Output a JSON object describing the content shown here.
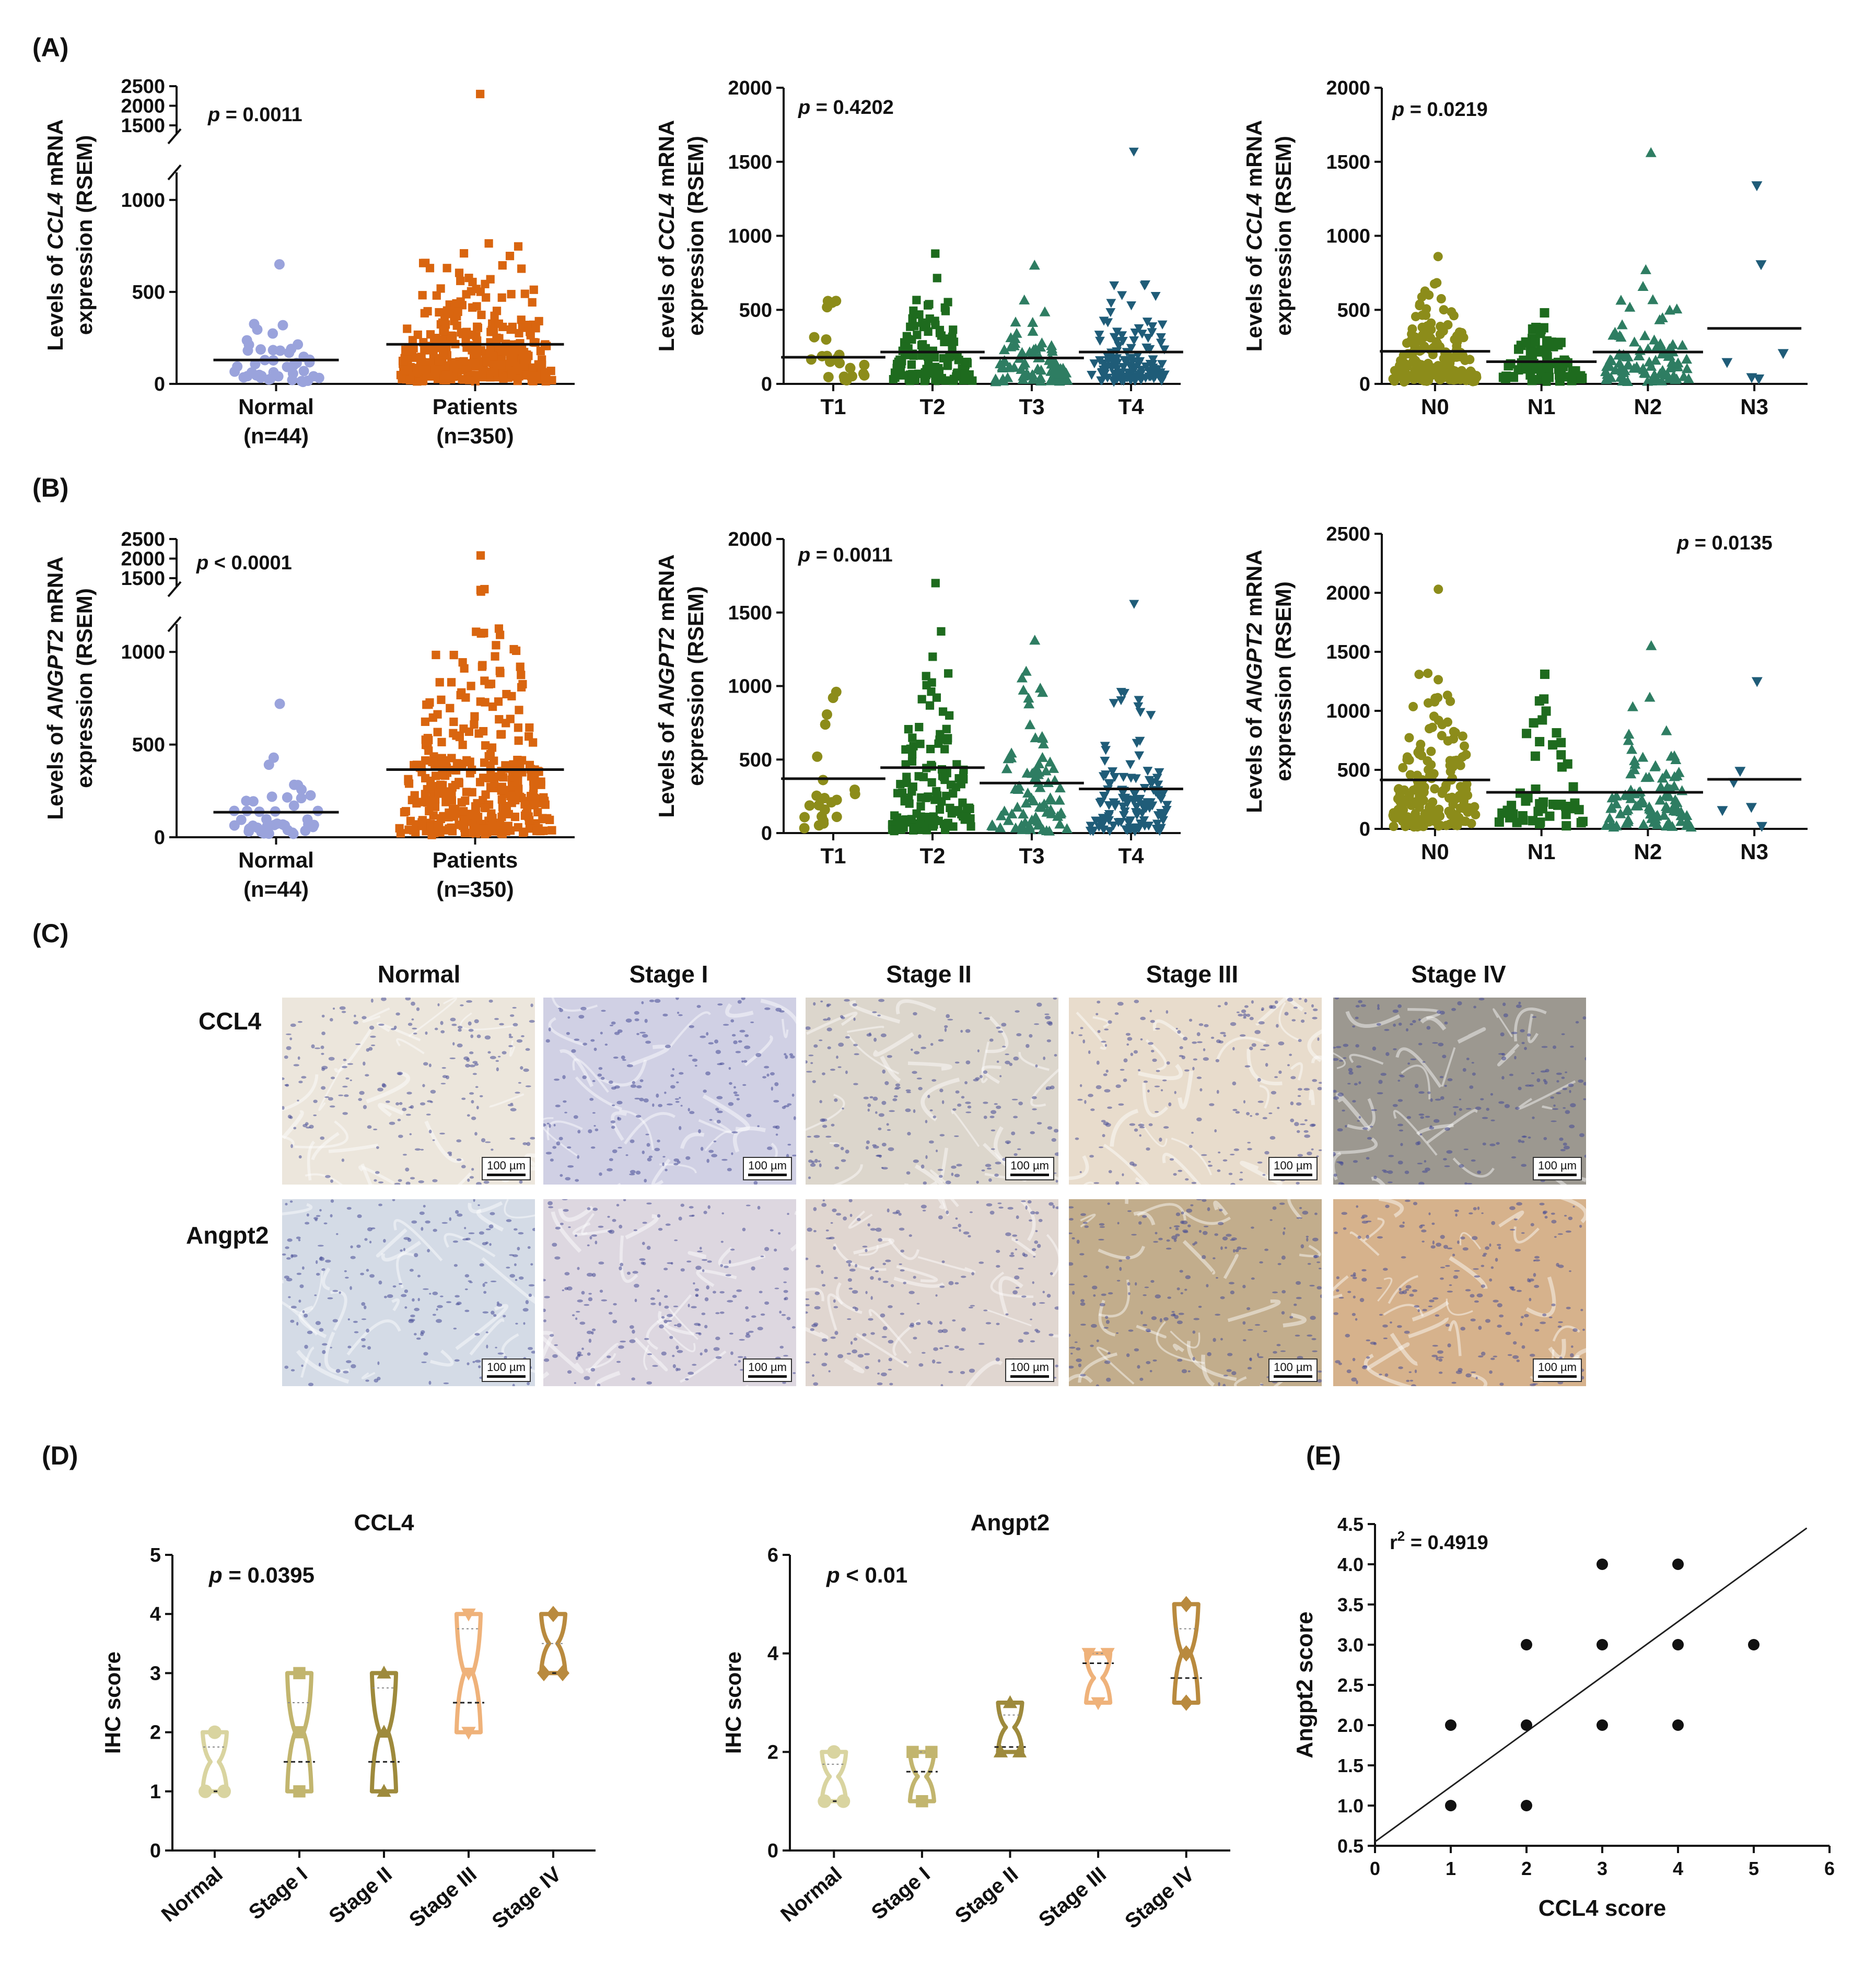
{
  "panel_labels": {
    "A": "(A)",
    "B": "(B)",
    "C": "(C)",
    "D": "(D)",
    "E": "(E)"
  },
  "colors": {
    "normal": "#9aa3dc",
    "patients": "#d9650f",
    "T1": "#8c8c1a",
    "T2": "#1e6b1e",
    "T3": "#2e7d62",
    "T4": "#1f5c78",
    "N0": "#8c8c1a",
    "N1": "#1e6b1e",
    "N2": "#2e7d62",
    "N3": "#1f5c78",
    "ihc_normal": "#d9d4a0",
    "ihc_stage1": "#c2b56e",
    "ihc_stage2": "#9e8a3c",
    "ihc_stage3": "#efb27a",
    "ihc_stage4": "#b98a3e"
  },
  "ihc": {
    "columns": [
      "Normal",
      "Stage I",
      "Stage II",
      "Stage III",
      "Stage IV"
    ],
    "rows": [
      "CCL4",
      "Angpt2"
    ],
    "scale_label": "100 µm",
    "tints": [
      [
        "#ece6dc",
        "#d0d0e4",
        "#dcd6cc",
        "#e8dccc",
        "#9c9890"
      ],
      [
        "#d4dbe6",
        "#ddd7e0",
        "#e0d6d0",
        "#c2ad8c",
        "#d6b28c"
      ]
    ]
  },
  "chart_data": [
    {
      "id": "A1",
      "type": "scatter",
      "ylabel_parts": [
        "Levels of ",
        "CCL4",
        " mRNA",
        "expression (RSEM)"
      ],
      "p_prefix": "p",
      "p_text": " = 0.0011",
      "yticks_low": [
        0,
        500,
        1000
      ],
      "ylim_low": [
        0,
        1150
      ],
      "yticks_high": [
        1500,
        2000,
        2500
      ],
      "ylim_high": [
        1300,
        2500
      ],
      "groups": [
        {
          "label": "Normal",
          "sublabel": "(n=44)",
          "color_key": "normal",
          "marker": "circle",
          "n": 44,
          "mean": 130,
          "max": 650
        },
        {
          "label": "Patients",
          "sublabel": "(n=350)",
          "color_key": "patients",
          "marker": "square",
          "n": 350,
          "mean": 215,
          "max": 2300
        }
      ]
    },
    {
      "id": "A2",
      "type": "scatter",
      "ylabel_parts": [
        "Levels of ",
        "CCL4",
        " mRNA",
        "expression (RSEM)"
      ],
      "p_prefix": "p",
      "p_text": " = 0.4202",
      "yticks": [
        0,
        500,
        1000,
        1500,
        2000
      ],
      "ylim": [
        0,
        2000
      ],
      "groups": [
        {
          "label": "T1",
          "color_key": "T1",
          "marker": "circle",
          "n": 22,
          "mean": 180,
          "max": 560
        },
        {
          "label": "T2",
          "color_key": "T2",
          "marker": "square",
          "n": 125,
          "mean": 215,
          "max": 880
        },
        {
          "label": "T3",
          "color_key": "T3",
          "marker": "triangle",
          "n": 80,
          "mean": 175,
          "max": 800
        },
        {
          "label": "T4",
          "color_key": "T4",
          "marker": "triangle-down",
          "n": 120,
          "mean": 215,
          "max": 1570
        }
      ]
    },
    {
      "id": "A3",
      "type": "scatter",
      "ylabel_parts": [
        "Levels of ",
        "CCL4",
        " mRNA",
        "expression (RSEM)"
      ],
      "p_prefix": "p",
      "p_text": " = 0.0219",
      "yticks": [
        0,
        500,
        1000,
        1500,
        2000
      ],
      "ylim": [
        0,
        2000
      ],
      "groups": [
        {
          "label": "N0",
          "color_key": "N0",
          "marker": "circle",
          "n": 170,
          "mean": 220,
          "max": 860
        },
        {
          "label": "N1",
          "color_key": "N1",
          "marker": "square",
          "n": 80,
          "mean": 150,
          "max": 480
        },
        {
          "label": "N2",
          "color_key": "N2",
          "marker": "triangle",
          "n": 95,
          "mean": 215,
          "max": 1560
        },
        {
          "label": "N3",
          "color_key": "N3",
          "marker": "triangle-down",
          "n": 6,
          "mean": 375,
          "max": 1340
        }
      ]
    },
    {
      "id": "B1",
      "type": "scatter",
      "ylabel_parts": [
        "Levels of ",
        "ANGPT2",
        " mRNA",
        "expression (RSEM)"
      ],
      "p_prefix": "p",
      "p_text": " < 0.0001",
      "yticks_low": [
        0,
        500,
        1000
      ],
      "ylim_low": [
        0,
        1150
      ],
      "yticks_high": [
        1500,
        2000,
        2500
      ],
      "ylim_high": [
        1300,
        2500
      ],
      "groups": [
        {
          "label": "Normal",
          "sublabel": "(n=44)",
          "color_key": "normal",
          "marker": "circle",
          "n": 44,
          "mean": 135,
          "max": 720
        },
        {
          "label": "Patients",
          "sublabel": "(n=350)",
          "color_key": "patients",
          "marker": "square",
          "n": 350,
          "mean": 365,
          "max": 2080
        }
      ]
    },
    {
      "id": "B2",
      "type": "scatter",
      "ylabel_parts": [
        "Levels of ",
        "ANGPT2",
        " mRNA",
        "expression (RSEM)"
      ],
      "p_prefix": "p",
      "p_text": " = 0.0011",
      "yticks": [
        0,
        500,
        1000,
        1500,
        2000
      ],
      "ylim": [
        0,
        2000
      ],
      "groups": [
        {
          "label": "T1",
          "color_key": "T1",
          "marker": "circle",
          "n": 22,
          "mean": 370,
          "max": 960
        },
        {
          "label": "T2",
          "color_key": "T2",
          "marker": "square",
          "n": 125,
          "mean": 445,
          "max": 1700
        },
        {
          "label": "T3",
          "color_key": "T3",
          "marker": "triangle",
          "n": 80,
          "mean": 340,
          "max": 1310
        },
        {
          "label": "T4",
          "color_key": "T4",
          "marker": "triangle-down",
          "n": 120,
          "mean": 300,
          "max": 1560
        }
      ]
    },
    {
      "id": "B3",
      "type": "scatter",
      "ylabel_parts": [
        "Levels of ",
        "ANGPT2",
        " mRNA",
        "expression (RSEM)"
      ],
      "p_prefix": "p",
      "p_text": " = 0.0135",
      "yticks": [
        0,
        500,
        1000,
        1500,
        2000,
        2500
      ],
      "ylim": [
        0,
        2500
      ],
      "groups": [
        {
          "label": "N0",
          "color_key": "N0",
          "marker": "circle",
          "n": 170,
          "mean": 415,
          "max": 2030
        },
        {
          "label": "N1",
          "color_key": "N1",
          "marker": "square",
          "n": 50,
          "mean": 310,
          "max": 1310
        },
        {
          "label": "N2",
          "color_key": "N2",
          "marker": "triangle",
          "n": 95,
          "mean": 310,
          "max": 1550
        },
        {
          "label": "N3",
          "color_key": "N3",
          "marker": "triangle-down",
          "n": 6,
          "mean": 420,
          "max": 1250
        }
      ]
    },
    {
      "id": "D1",
      "type": "violin",
      "title": "CCL4",
      "ylabel": "IHC score",
      "p_prefix": "p",
      "p_text": " = 0.0395",
      "yticks": [
        0,
        1,
        2,
        3,
        4,
        5
      ],
      "ylim": [
        0,
        5
      ],
      "groups": [
        {
          "label": "Normal",
          "color_key": "ihc_normal",
          "marker": "circle",
          "points": [
            1,
            1,
            2
          ],
          "min": 1,
          "max": 2,
          "median": 1,
          "q1": 1,
          "q3": 1.75
        },
        {
          "label": "Stage I",
          "color_key": "ihc_stage1",
          "marker": "square",
          "points": [
            1,
            2,
            3
          ],
          "min": 1,
          "max": 3,
          "median": 1.5,
          "q1": 1,
          "q3": 2.5
        },
        {
          "label": "Stage II",
          "color_key": "ihc_stage2",
          "marker": "triangle",
          "points": [
            1,
            2,
            3
          ],
          "min": 1,
          "max": 3,
          "median": 1.5,
          "q1": 1,
          "q3": 2.75
        },
        {
          "label": "Stage III",
          "color_key": "ihc_stage3",
          "marker": "triangle-down",
          "points": [
            2,
            3,
            4
          ],
          "min": 2,
          "max": 4,
          "median": 2.5,
          "q1": 2.1,
          "q3": 3.75
        },
        {
          "label": "Stage IV",
          "color_key": "ihc_stage4",
          "marker": "diamond",
          "points": [
            3,
            3,
            4
          ],
          "min": 3,
          "max": 4,
          "median": 3,
          "q1": 3,
          "q3": 3.5
        }
      ]
    },
    {
      "id": "D2",
      "type": "violin",
      "title": "Angpt2",
      "ylabel": "IHC score",
      "p_prefix": "p",
      "p_text": " < 0.01",
      "yticks": [
        0,
        2,
        4,
        6
      ],
      "ylim": [
        0,
        6
      ],
      "groups": [
        {
          "label": "Normal",
          "color_key": "ihc_normal",
          "marker": "circle",
          "points": [
            1,
            1,
            2
          ],
          "min": 1,
          "max": 2,
          "median": 1,
          "q1": 1,
          "q3": 1.75
        },
        {
          "label": "Stage I",
          "color_key": "ihc_stage1",
          "marker": "square",
          "points": [
            1,
            2,
            2
          ],
          "min": 1,
          "max": 2,
          "median": 1.6,
          "q1": 1.2,
          "q3": 2
        },
        {
          "label": "Stage II",
          "color_key": "ihc_stage2",
          "marker": "triangle",
          "points": [
            2,
            2,
            3
          ],
          "min": 2,
          "max": 3,
          "median": 2.1,
          "q1": 2,
          "q3": 2.75
        },
        {
          "label": "Stage III",
          "color_key": "ihc_stage3",
          "marker": "triangle-down",
          "points": [
            3,
            4,
            4
          ],
          "min": 3,
          "max": 4,
          "median": 3.8,
          "q1": 3.2,
          "q3": 4
        },
        {
          "label": "Stage IV",
          "color_key": "ihc_stage4",
          "marker": "diamond",
          "points": [
            3,
            4,
            5
          ],
          "min": 3,
          "max": 5,
          "median": 3.5,
          "q1": 3.1,
          "q3": 4.5
        }
      ]
    },
    {
      "id": "E",
      "type": "scatter",
      "xlabel": "CCL4 score",
      "ylabel": "Angpt2 score",
      "r2_prefix": "r",
      "r2_exp": "2",
      "r2_text": " = 0.4919",
      "xticks": [
        0,
        1,
        2,
        3,
        4,
        5,
        6
      ],
      "xlim": [
        0,
        6
      ],
      "yticks": [
        "0.5",
        "1.0",
        "1.5",
        "2.0",
        "2.5",
        "3.0",
        "3.5",
        "4.0",
        "4.5"
      ],
      "ylim": [
        0.5,
        4.5
      ],
      "points": [
        [
          1,
          1
        ],
        [
          1,
          2
        ],
        [
          2,
          1
        ],
        [
          2,
          2
        ],
        [
          2,
          3
        ],
        [
          3,
          2
        ],
        [
          3,
          3
        ],
        [
          3,
          4
        ],
        [
          4,
          2
        ],
        [
          4,
          3
        ],
        [
          4,
          4
        ],
        [
          5,
          3
        ]
      ],
      "fit_line": [
        [
          0,
          0.55
        ],
        [
          5.7,
          4.45
        ]
      ]
    }
  ]
}
